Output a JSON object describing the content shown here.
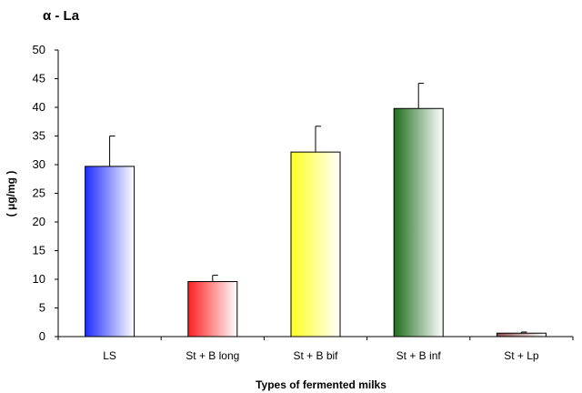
{
  "chart_data": {
    "type": "bar",
    "title": "α - La",
    "xlabel": "Types of fermented milks",
    "ylabel": "( μg/mg )",
    "ylim": [
      0,
      50
    ],
    "yticks": [
      0,
      5,
      10,
      15,
      20,
      25,
      30,
      35,
      40,
      45,
      50
    ],
    "grid": false,
    "categories": [
      "LS",
      "St + B long",
      "St + B bif",
      "St + B inf",
      "St + Lp"
    ],
    "values": [
      29.7,
      9.6,
      32.2,
      39.8,
      0.6
    ],
    "errors": [
      5.3,
      1.1,
      4.5,
      4.4,
      0.2
    ],
    "colors": [
      "#1f2cff",
      "#ff1f1f",
      "#ffff1f",
      "#1e6e1e",
      "#8b4a4a"
    ]
  }
}
